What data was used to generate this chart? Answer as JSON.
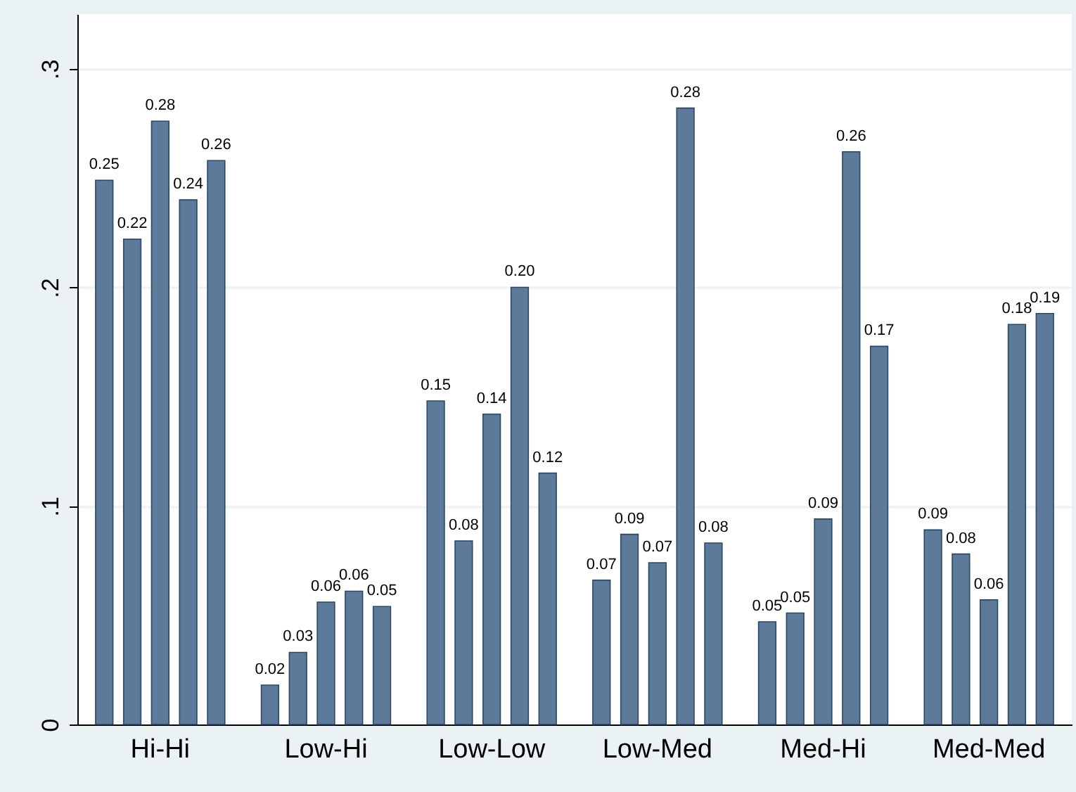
{
  "chart_data": {
    "type": "bar",
    "categories": [
      "Hi-Hi",
      "Low-Hi",
      "Low-Low",
      "Low-Med",
      "Med-Hi",
      "Med-Med"
    ],
    "series": [
      {
        "color": "#5d7a9a",
        "values": [
          0.249,
          0.018,
          0.148,
          0.066,
          0.047,
          0.089
        ],
        "value_labels": [
          "0.25",
          "0.02",
          "0.15",
          "0.07",
          "0.05",
          "0.09"
        ]
      },
      {
        "color": "#5d7a9a",
        "values": [
          0.222,
          0.033,
          0.084,
          0.087,
          0.051,
          0.078
        ],
        "value_labels": [
          "0.22",
          "0.03",
          "0.08",
          "0.09",
          "0.05",
          "0.08"
        ]
      },
      {
        "color": "#5d7a9a",
        "values": [
          0.276,
          0.056,
          0.142,
          0.074,
          0.094,
          0.057
        ],
        "value_labels": [
          "0.28",
          "0.06",
          "0.14",
          "0.07",
          "0.09",
          "0.06"
        ]
      },
      {
        "color": "#5d7a9a",
        "values": [
          0.24,
          0.061,
          0.2,
          0.282,
          0.262,
          0.183
        ],
        "value_labels": [
          "0.24",
          "0.06",
          "0.20",
          "0.28",
          "0.26",
          "0.18"
        ]
      },
      {
        "color": "#5d7a9a",
        "values": [
          0.258,
          0.054,
          0.115,
          0.083,
          0.173,
          0.188
        ],
        "value_labels": [
          "0.26",
          "0.05",
          "0.12",
          "0.08",
          "0.17",
          "0.19"
        ]
      }
    ],
    "ylim": [
      0,
      0.325
    ],
    "yticks": [
      0,
      {
        "value": 0.1,
        "label": ".1"
      },
      {
        "value": 0.2,
        "label": ".2"
      },
      {
        "value": 0.3,
        "label": ".3"
      }
    ],
    "grid": "y"
  }
}
